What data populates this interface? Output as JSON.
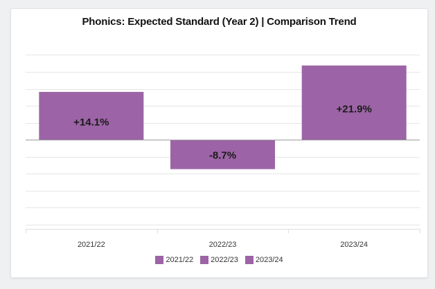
{
  "chart_data": {
    "type": "bar",
    "title": "Phonics: Expected Standard (Year 2) | Comparison Trend",
    "categories": [
      "2021/22",
      "2022/23",
      "2023/24"
    ],
    "values": [
      14.1,
      -8.7,
      21.9
    ],
    "data_labels": [
      "+14.1%",
      "-8.7%",
      "+21.9%"
    ],
    "legend": [
      "2021/22",
      "2022/23",
      "2023/24"
    ],
    "legend_position": "bottom",
    "ylim": [
      -25,
      25
    ],
    "grid": true,
    "colors": {
      "bar": "#9c64a6"
    }
  }
}
